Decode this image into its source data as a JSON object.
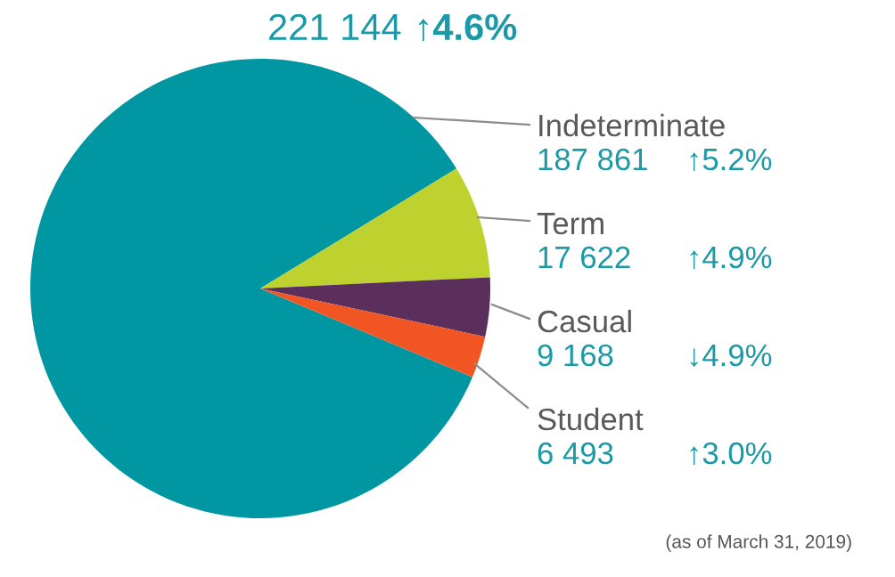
{
  "chart_data": {
    "type": "pie",
    "title": "221 144",
    "subtitle": "↑4.6%",
    "categories": [
      "Indeterminate",
      "Term",
      "Casual",
      "Student"
    ],
    "values": [
      187861,
      17622,
      9168,
      6493
    ],
    "value_labels": [
      "187 861",
      "17 622",
      "9 168",
      "6 493"
    ],
    "colors": [
      "#0097a3",
      "#bed22f",
      "#5a2f5c",
      "#f05523"
    ],
    "annotations": [
      "↑5.2%",
      "↑4.9%",
      "↓4.9%",
      "↑3.0%",
      "(as of March 31, 2019)"
    ],
    "legend": false
  }
}
